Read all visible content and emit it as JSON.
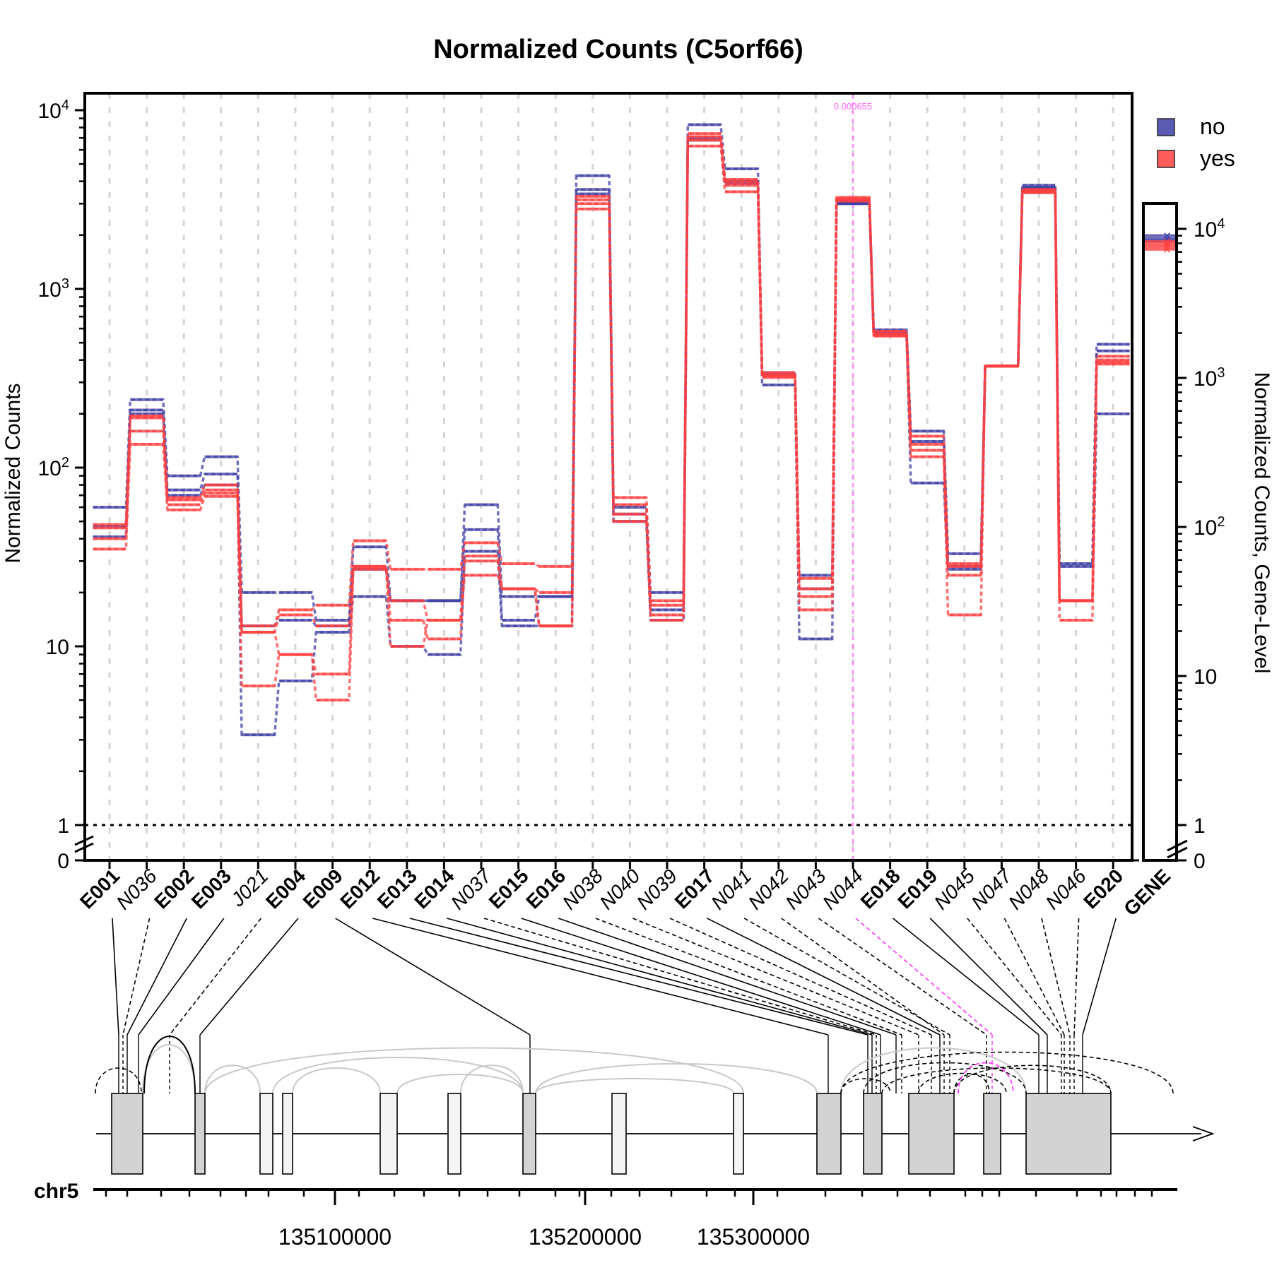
{
  "chart_data": {
    "type": "line",
    "title": "Normalized Counts (C5orf66)",
    "ylabel": "Normalized Counts",
    "y2label": "Normalized Counts, Gene-Level",
    "y_scale": "log",
    "ylim": [
      0,
      10000
    ],
    "y_ticks": [
      {
        "label": "0"
      },
      {
        "label": "1"
      },
      {
        "label": "10"
      },
      {
        "base": "10",
        "exp": "2"
      },
      {
        "base": "10",
        "exp": "3"
      },
      {
        "base": "10",
        "exp": "4"
      }
    ],
    "grid": "vertical dashed",
    "legend_position": "top-right",
    "legend": [
      {
        "name": "no",
        "color": "#3f3fa6"
      },
      {
        "name": "yes",
        "color": "#ff4040"
      }
    ],
    "categories": [
      {
        "label": "E001",
        "bold": true
      },
      {
        "label": "N036",
        "bold": false
      },
      {
        "label": "E002",
        "bold": true
      },
      {
        "label": "E003",
        "bold": true
      },
      {
        "label": "J021",
        "bold": false
      },
      {
        "label": "E004",
        "bold": true
      },
      {
        "label": "E009",
        "bold": true
      },
      {
        "label": "E012",
        "bold": true
      },
      {
        "label": "E013",
        "bold": true
      },
      {
        "label": "E014",
        "bold": true
      },
      {
        "label": "N037",
        "bold": false
      },
      {
        "label": "E015",
        "bold": true
      },
      {
        "label": "E016",
        "bold": true
      },
      {
        "label": "N038",
        "bold": false
      },
      {
        "label": "N040",
        "bold": false
      },
      {
        "label": "N039",
        "bold": false
      },
      {
        "label": "E017",
        "bold": true
      },
      {
        "label": "N041",
        "bold": false
      },
      {
        "label": "N042",
        "bold": false
      },
      {
        "label": "N043",
        "bold": false
      },
      {
        "label": "N044",
        "bold": false
      },
      {
        "label": "E018",
        "bold": true
      },
      {
        "label": "E019",
        "bold": true
      },
      {
        "label": "N045",
        "bold": false
      },
      {
        "label": "N047",
        "bold": false
      },
      {
        "label": "N048",
        "bold": false
      },
      {
        "label": "N046",
        "bold": false
      },
      {
        "label": "E020",
        "bold": true
      }
    ],
    "gene_label": "GENE",
    "highlight": {
      "category": "N044",
      "label": "0.000655",
      "color": "#ff66ff"
    },
    "series": [
      {
        "group": "no",
        "values": [
          60,
          240,
          90,
          115,
          20,
          20,
          14,
          36,
          18,
          18,
          62,
          19,
          19,
          4300,
          60,
          20,
          8300,
          4700,
          340,
          25,
          3000,
          590,
          160,
          33,
          370,
          3800,
          29,
          490
        ]
      },
      {
        "group": "no",
        "values": [
          47,
          210,
          75,
          92,
          13,
          14,
          13,
          27,
          18,
          18,
          45,
          14,
          19,
          3600,
          55,
          16,
          7000,
          4000,
          330,
          21,
          3050,
          570,
          140,
          28,
          370,
          3700,
          28,
          450
        ]
      },
      {
        "group": "no",
        "values": [
          41,
          200,
          70,
          80,
          3.2,
          6.4,
          12,
          19,
          10,
          9,
          34,
          13,
          13,
          3400,
          50,
          14,
          6800,
          3900,
          290,
          11,
          3000,
          560,
          82,
          27,
          370,
          3650,
          18,
          200
        ]
      },
      {
        "group": "yes",
        "values": [
          48,
          195,
          68,
          80,
          13,
          16,
          17,
          39,
          27,
          27,
          38,
          29,
          28,
          3300,
          68,
          18,
          7400,
          4100,
          340,
          24,
          3250,
          580,
          150,
          29,
          370,
          3600,
          18,
          420
        ]
      },
      {
        "group": "yes",
        "values": [
          46,
          190,
          66,
          75,
          12,
          15,
          13,
          28,
          18,
          14,
          32,
          21,
          20,
          3150,
          62,
          17,
          7100,
          3950,
          330,
          21,
          3200,
          560,
          135,
          28,
          370,
          3550,
          18,
          400
        ]
      },
      {
        "group": "yes",
        "values": [
          40,
          160,
          62,
          72,
          12,
          9,
          7,
          28,
          14,
          11,
          30,
          21,
          13,
          3000,
          55,
          15,
          6800,
          3800,
          325,
          19,
          3150,
          550,
          125,
          25,
          370,
          3500,
          18,
          390
        ]
      },
      {
        "group": "yes",
        "values": [
          35,
          135,
          58,
          69,
          6,
          9,
          5,
          27,
          10,
          14,
          25,
          21,
          13,
          2800,
          50,
          14,
          6300,
          3500,
          320,
          16,
          3100,
          545,
          115,
          15,
          370,
          3450,
          14,
          380
        ]
      }
    ],
    "gene_level": {
      "y_ticks": [
        {
          "label": "0"
        },
        {
          "label": "1"
        },
        {
          "label": "10"
        },
        {
          "base": "10",
          "exp": "2"
        },
        {
          "base": "10",
          "exp": "3"
        },
        {
          "base": "10",
          "exp": "4"
        }
      ],
      "no": [
        9000,
        8600,
        8300
      ],
      "yes": [
        8200,
        7900,
        7600,
        7300
      ]
    }
  },
  "gene_model": {
    "chromosome": "chr5",
    "coordinate_ticks": [
      "135100000",
      "135200000",
      "135300000"
    ]
  }
}
